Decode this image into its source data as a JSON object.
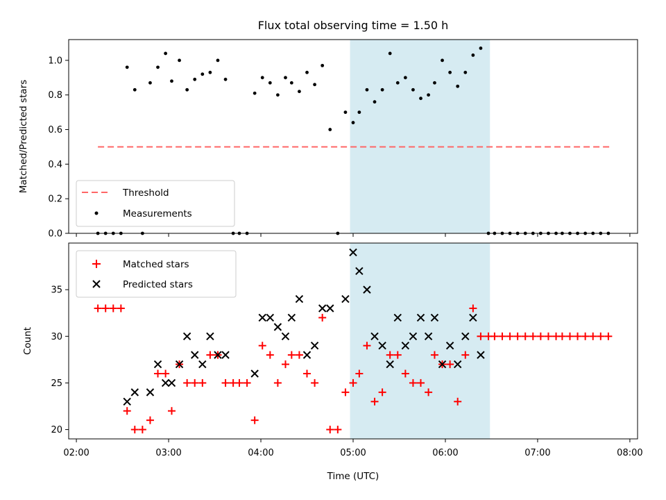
{
  "chart_data": [
    {
      "type": "scatter",
      "title": "Flux total observing time = 1.50 h",
      "xlabel": "",
      "ylabel": "Matched/Predicted stars",
      "ylim": [
        0,
        1.12
      ],
      "xlim": [
        "02:00",
        "08:00"
      ],
      "yticks": [
        "0.0",
        "0.2",
        "0.4",
        "0.6",
        "0.8",
        "1.0"
      ],
      "shaded_span": {
        "x0": "04:58",
        "x1": "06:29",
        "color": "#add8e6"
      },
      "legend_position": "lower-left",
      "threshold": {
        "name": "Threshold",
        "value": 0.5,
        "x0": "02:14",
        "x1": "07:48",
        "color": "#ff6666",
        "style": "dashed"
      },
      "series": [
        {
          "name": "Measurements",
          "marker": "dot",
          "color": "#000000",
          "points": [
            [
              "02:14",
              0.0
            ],
            [
              "02:19",
              0.0
            ],
            [
              "02:24",
              0.0
            ],
            [
              "02:29",
              0.0
            ],
            [
              "02:33",
              0.96
            ],
            [
              "02:38",
              0.83
            ],
            [
              "02:43",
              0.0
            ],
            [
              "02:48",
              0.87
            ],
            [
              "02:53",
              0.96
            ],
            [
              "02:58",
              1.04
            ],
            [
              "03:02",
              0.88
            ],
            [
              "03:07",
              1.0
            ],
            [
              "03:12",
              0.83
            ],
            [
              "03:17",
              0.89
            ],
            [
              "03:22",
              0.92
            ],
            [
              "03:27",
              0.93
            ],
            [
              "03:32",
              1.0
            ],
            [
              "03:37",
              0.89
            ],
            [
              "03:42",
              0.0
            ],
            [
              "03:46",
              0.0
            ],
            [
              "03:51",
              0.0
            ],
            [
              "03:56",
              0.81
            ],
            [
              "04:01",
              0.9
            ],
            [
              "04:06",
              0.87
            ],
            [
              "04:11",
              0.8
            ],
            [
              "04:16",
              0.9
            ],
            [
              "04:20",
              0.87
            ],
            [
              "04:25",
              0.82
            ],
            [
              "04:30",
              0.93
            ],
            [
              "04:35",
              0.86
            ],
            [
              "04:40",
              0.97
            ],
            [
              "04:45",
              0.6
            ],
            [
              "04:50",
              0.0
            ],
            [
              "04:55",
              0.7
            ],
            [
              "05:00",
              0.64
            ],
            [
              "05:04",
              0.7
            ],
            [
              "05:09",
              0.83
            ],
            [
              "05:14",
              0.76
            ],
            [
              "05:19",
              0.83
            ],
            [
              "05:24",
              1.04
            ],
            [
              "05:29",
              0.87
            ],
            [
              "05:34",
              0.9
            ],
            [
              "05:39",
              0.83
            ],
            [
              "05:44",
              0.78
            ],
            [
              "05:49",
              0.8
            ],
            [
              "05:53",
              0.87
            ],
            [
              "05:58",
              1.0
            ],
            [
              "06:03",
              0.93
            ],
            [
              "06:08",
              0.85
            ],
            [
              "06:13",
              0.93
            ],
            [
              "06:18",
              1.03
            ],
            [
              "06:23",
              1.07
            ],
            [
              "06:28",
              0.0
            ],
            [
              "06:32",
              0.0
            ],
            [
              "06:37",
              0.0
            ],
            [
              "06:42",
              0.0
            ],
            [
              "06:47",
              0.0
            ],
            [
              "06:52",
              0.0
            ],
            [
              "06:57",
              0.0
            ],
            [
              "07:02",
              0.0
            ],
            [
              "07:07",
              0.0
            ],
            [
              "07:12",
              0.0
            ],
            [
              "07:16",
              0.0
            ],
            [
              "07:21",
              0.0
            ],
            [
              "07:26",
              0.0
            ],
            [
              "07:31",
              0.0
            ],
            [
              "07:36",
              0.0
            ],
            [
              "07:41",
              0.0
            ],
            [
              "07:46",
              0.0
            ]
          ]
        }
      ]
    },
    {
      "type": "scatter",
      "title": "",
      "xlabel": "Time (UTC)",
      "ylabel": "Count",
      "ylim": [
        19,
        40
      ],
      "xlim": [
        "02:00",
        "08:00"
      ],
      "yticks": [
        "20",
        "25",
        "30",
        "35"
      ],
      "xticks": [
        "02:00",
        "03:00",
        "04:00",
        "05:00",
        "06:00",
        "07:00",
        "08:00"
      ],
      "shaded_span": {
        "x0": "04:58",
        "x1": "06:29",
        "color": "#add8e6"
      },
      "legend_position": "upper-left",
      "series": [
        {
          "name": "Matched stars",
          "marker": "plus",
          "color": "#ff0000",
          "points": [
            [
              "02:14",
              33
            ],
            [
              "02:19",
              33
            ],
            [
              "02:24",
              33
            ],
            [
              "02:29",
              33
            ],
            [
              "02:33",
              22
            ],
            [
              "02:38",
              20
            ],
            [
              "02:43",
              20
            ],
            [
              "02:48",
              21
            ],
            [
              "02:53",
              26
            ],
            [
              "02:58",
              26
            ],
            [
              "03:02",
              22
            ],
            [
              "03:07",
              27
            ],
            [
              "03:12",
              25
            ],
            [
              "03:17",
              25
            ],
            [
              "03:22",
              25
            ],
            [
              "03:27",
              28
            ],
            [
              "03:32",
              28
            ],
            [
              "03:37",
              25
            ],
            [
              "03:42",
              25
            ],
            [
              "03:46",
              25
            ],
            [
              "03:51",
              25
            ],
            [
              "03:56",
              21
            ],
            [
              "04:01",
              29
            ],
            [
              "04:06",
              28
            ],
            [
              "04:11",
              25
            ],
            [
              "04:16",
              27
            ],
            [
              "04:20",
              28
            ],
            [
              "04:25",
              28
            ],
            [
              "04:30",
              26
            ],
            [
              "04:35",
              25
            ],
            [
              "04:40",
              32
            ],
            [
              "04:45",
              20
            ],
            [
              "04:50",
              20
            ],
            [
              "04:55",
              24
            ],
            [
              "05:00",
              25
            ],
            [
              "05:04",
              26
            ],
            [
              "05:09",
              29
            ],
            [
              "05:14",
              23
            ],
            [
              "05:19",
              24
            ],
            [
              "05:24",
              28
            ],
            [
              "05:29",
              28
            ],
            [
              "05:34",
              26
            ],
            [
              "05:39",
              25
            ],
            [
              "05:44",
              25
            ],
            [
              "05:49",
              24
            ],
            [
              "05:53",
              28
            ],
            [
              "05:58",
              27
            ],
            [
              "06:03",
              27
            ],
            [
              "06:08",
              23
            ],
            [
              "06:13",
              28
            ],
            [
              "06:18",
              33
            ],
            [
              "06:23",
              30
            ],
            [
              "06:28",
              30
            ],
            [
              "06:32",
              30
            ],
            [
              "06:37",
              30
            ],
            [
              "06:42",
              30
            ],
            [
              "06:47",
              30
            ],
            [
              "06:52",
              30
            ],
            [
              "06:57",
              30
            ],
            [
              "07:02",
              30
            ],
            [
              "07:07",
              30
            ],
            [
              "07:12",
              30
            ],
            [
              "07:16",
              30
            ],
            [
              "07:21",
              30
            ],
            [
              "07:26",
              30
            ],
            [
              "07:31",
              30
            ],
            [
              "07:36",
              30
            ],
            [
              "07:41",
              30
            ],
            [
              "07:46",
              30
            ]
          ]
        },
        {
          "name": "Predicted stars",
          "marker": "x",
          "color": "#000000",
          "points": [
            [
              "02:33",
              23
            ],
            [
              "02:38",
              24
            ],
            [
              "02:48",
              24
            ],
            [
              "02:53",
              27
            ],
            [
              "02:58",
              25
            ],
            [
              "03:02",
              25
            ],
            [
              "03:07",
              27
            ],
            [
              "03:12",
              30
            ],
            [
              "03:17",
              28
            ],
            [
              "03:22",
              27
            ],
            [
              "03:27",
              30
            ],
            [
              "03:32",
              28
            ],
            [
              "03:37",
              28
            ],
            [
              "03:56",
              26
            ],
            [
              "04:01",
              32
            ],
            [
              "04:06",
              32
            ],
            [
              "04:11",
              31
            ],
            [
              "04:16",
              30
            ],
            [
              "04:20",
              32
            ],
            [
              "04:25",
              34
            ],
            [
              "04:30",
              28
            ],
            [
              "04:35",
              29
            ],
            [
              "04:40",
              33
            ],
            [
              "04:45",
              33
            ],
            [
              "04:55",
              34
            ],
            [
              "05:00",
              39
            ],
            [
              "05:04",
              37
            ],
            [
              "05:09",
              35
            ],
            [
              "05:14",
              30
            ],
            [
              "05:19",
              29
            ],
            [
              "05:24",
              27
            ],
            [
              "05:29",
              32
            ],
            [
              "05:34",
              29
            ],
            [
              "05:39",
              30
            ],
            [
              "05:44",
              32
            ],
            [
              "05:49",
              30
            ],
            [
              "05:53",
              32
            ],
            [
              "05:58",
              27
            ],
            [
              "06:03",
              29
            ],
            [
              "06:08",
              27
            ],
            [
              "06:13",
              30
            ],
            [
              "06:18",
              32
            ],
            [
              "06:23",
              28
            ]
          ]
        }
      ]
    }
  ]
}
